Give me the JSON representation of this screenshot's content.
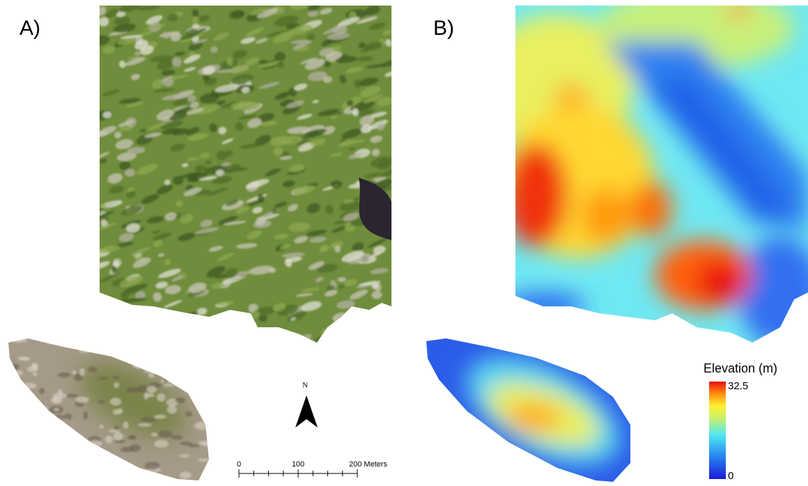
{
  "panels": [
    {
      "label": "A)"
    },
    {
      "label": "B)"
    }
  ],
  "north_arrow": {
    "label": "N"
  },
  "scale_bar": {
    "labels": [
      "0",
      "100",
      "200 Meters"
    ]
  },
  "legend": {
    "title": "Elevation (m)",
    "max": "32.5",
    "min": "0"
  }
}
